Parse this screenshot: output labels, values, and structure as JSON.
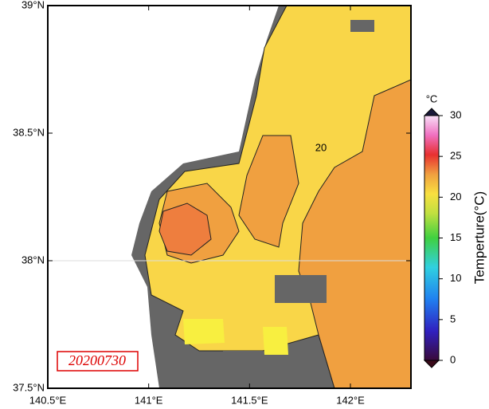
{
  "date_label": "20200730",
  "contour_label": "20",
  "x_axis": {
    "lim": [
      140.5,
      142.3
    ],
    "ticks": [
      {
        "value": 140.5,
        "label": "140.5°E"
      },
      {
        "value": 141,
        "label": "141°E"
      },
      {
        "value": 141.5,
        "label": "141.5°E"
      },
      {
        "value": 142,
        "label": "142°E"
      }
    ]
  },
  "y_axis": {
    "lim": [
      37.5,
      39
    ],
    "ticks": [
      {
        "value": 37.5,
        "label": "37.5°N"
      },
      {
        "value": 38,
        "label": "38°N"
      },
      {
        "value": 38.5,
        "label": "38.5°N"
      },
      {
        "value": 39,
        "label": "39°N"
      }
    ]
  },
  "colorbar": {
    "unit": "°C",
    "title": "Temperture(°C)",
    "lim": [
      0,
      30
    ],
    "ticks": [
      0,
      5,
      10,
      15,
      20,
      25,
      30
    ]
  }
}
